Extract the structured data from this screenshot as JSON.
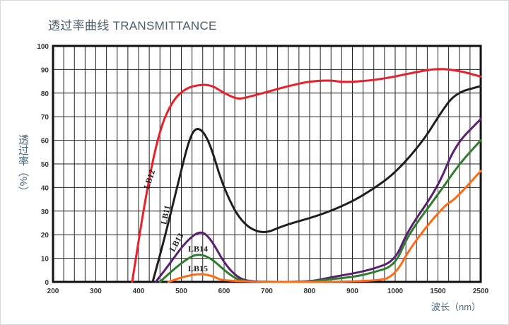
{
  "chart_data": {
    "type": "line",
    "title": "透过率曲线 TRANSMITTANCE",
    "xlabel": "波长（nm）",
    "ylabel": "透过率（%）",
    "x_ticks": [
      200,
      300,
      400,
      500,
      600,
      700,
      800,
      900,
      1000,
      1500,
      2500
    ],
    "y_ticks": [
      0,
      10,
      20,
      30,
      40,
      50,
      60,
      70,
      80,
      90,
      100
    ],
    "ylim": [
      0,
      100
    ],
    "xlim": [
      200,
      2500
    ],
    "grid": true,
    "series": [
      {
        "name": "LB12",
        "color": "#e8202a",
        "points": [
          [
            385,
            0
          ],
          [
            420,
            40
          ],
          [
            450,
            65
          ],
          [
            480,
            77
          ],
          [
            510,
            82
          ],
          [
            540,
            83.5
          ],
          [
            570,
            83.5
          ],
          [
            600,
            80
          ],
          [
            630,
            77.5
          ],
          [
            650,
            78
          ],
          [
            700,
            80.5
          ],
          [
            750,
            83
          ],
          [
            800,
            85
          ],
          [
            850,
            85.5
          ],
          [
            880,
            84.5
          ],
          [
            950,
            85.5
          ],
          [
            1000,
            87
          ],
          [
            1250,
            89
          ],
          [
            1500,
            90.5
          ],
          [
            2000,
            89.5
          ],
          [
            2500,
            87
          ]
        ]
      },
      {
        "name": "LB11",
        "color": "#1e1e1e",
        "points": [
          [
            433,
            0
          ],
          [
            460,
            18
          ],
          [
            490,
            40
          ],
          [
            520,
            62
          ],
          [
            540,
            66
          ],
          [
            565,
            60
          ],
          [
            598,
            40
          ],
          [
            640,
            25
          ],
          [
            690,
            20
          ],
          [
            740,
            24
          ],
          [
            820,
            28
          ],
          [
            888,
            33
          ],
          [
            937,
            38
          ],
          [
            1000,
            46
          ],
          [
            1333,
            60
          ],
          [
            1540,
            71
          ],
          [
            1900,
            80
          ],
          [
            2500,
            83
          ]
        ]
      },
      {
        "name": "LB13",
        "color": "#5a2070",
        "points": [
          [
            440,
            0
          ],
          [
            470,
            7
          ],
          [
            510,
            17
          ],
          [
            545,
            22
          ],
          [
            570,
            18
          ],
          [
            600,
            8
          ],
          [
            630,
            2
          ],
          [
            660,
            0
          ],
          [
            800,
            0
          ],
          [
            850,
            2
          ],
          [
            900,
            3.5
          ],
          [
            950,
            5.5
          ],
          [
            1000,
            9
          ],
          [
            1150,
            22
          ],
          [
            1500,
            40
          ],
          [
            1900,
            58
          ],
          [
            2500,
            69
          ]
        ]
      },
      {
        "name": "LB14",
        "color": "#2e7d2e",
        "points": [
          [
            450,
            0
          ],
          [
            480,
            5
          ],
          [
            515,
            10
          ],
          [
            540,
            12
          ],
          [
            570,
            10
          ],
          [
            600,
            5
          ],
          [
            630,
            1
          ],
          [
            660,
            0
          ],
          [
            800,
            0
          ],
          [
            850,
            1.2
          ],
          [
            900,
            2
          ],
          [
            950,
            4
          ],
          [
            1000,
            7
          ],
          [
            1150,
            20
          ],
          [
            1500,
            37
          ],
          [
            2000,
            50
          ],
          [
            2500,
            60
          ]
        ]
      },
      {
        "name": "LB15",
        "color": "#ff6a13",
        "points": [
          [
            470,
            0
          ],
          [
            510,
            2.5
          ],
          [
            545,
            3.5
          ],
          [
            575,
            2.5
          ],
          [
            600,
            0
          ],
          [
            960,
            0
          ],
          [
            1000,
            3
          ],
          [
            1170,
            14
          ],
          [
            1400,
            25
          ],
          [
            1700,
            33
          ],
          [
            1900,
            35
          ],
          [
            2500,
            47
          ]
        ]
      }
    ]
  }
}
